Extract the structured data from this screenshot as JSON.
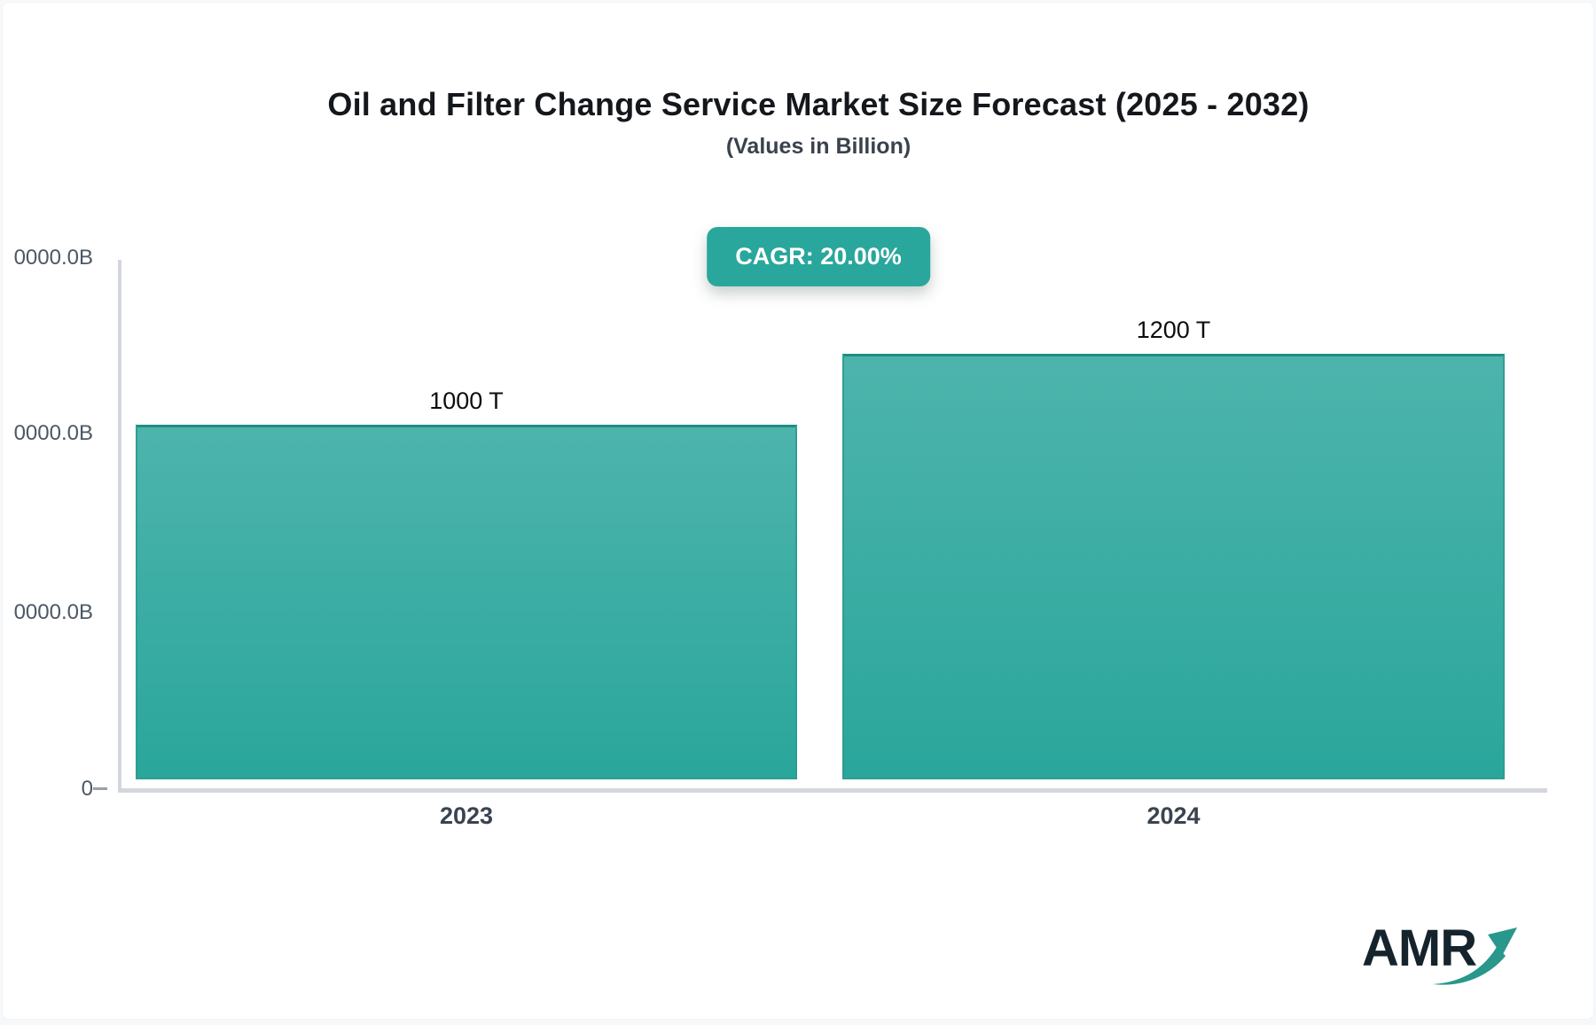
{
  "header": {
    "title": "Oil and Filter Change Service Market Size Forecast (2025 - 2032)",
    "subtitle": "(Values in Billion)",
    "cagr_badge": "CAGR: 20.00%"
  },
  "chart_data": {
    "type": "bar",
    "title": "Oil and Filter Change Service Market Size Forecast (2025 - 2032)",
    "subtitle": "(Values in Billion)",
    "categories": [
      "2023",
      "2024"
    ],
    "values": [
      1000,
      1200
    ],
    "unit": "T",
    "value_labels": [
      "1000 T",
      "1200 T"
    ],
    "annotations": [
      "CAGR: 20.00%"
    ],
    "ylim": [
      0,
      1500
    ],
    "y_tick_labels_top_to_bottom": [
      "0000.0B",
      "0000.0B",
      "0000.0B",
      "0"
    ],
    "xlabel": "",
    "ylabel": "",
    "grid": false,
    "legend": "none"
  },
  "footer": {
    "logo_text": "AMR"
  },
  "colors": {
    "accent_teal": "#2aa79c",
    "bar_gradient_top": "#4db4ac",
    "bar_gradient_bottom": "#2aa69b",
    "bar_border_top": "#1f8e84",
    "axis_line": "#d3d7dd",
    "tick_text": "#4c5866",
    "category_text": "#3a4350",
    "title_text": "#14171c",
    "badge_text": "#ffffff",
    "logo_text": "#15232c",
    "logo_arrow": "#2a978c"
  }
}
